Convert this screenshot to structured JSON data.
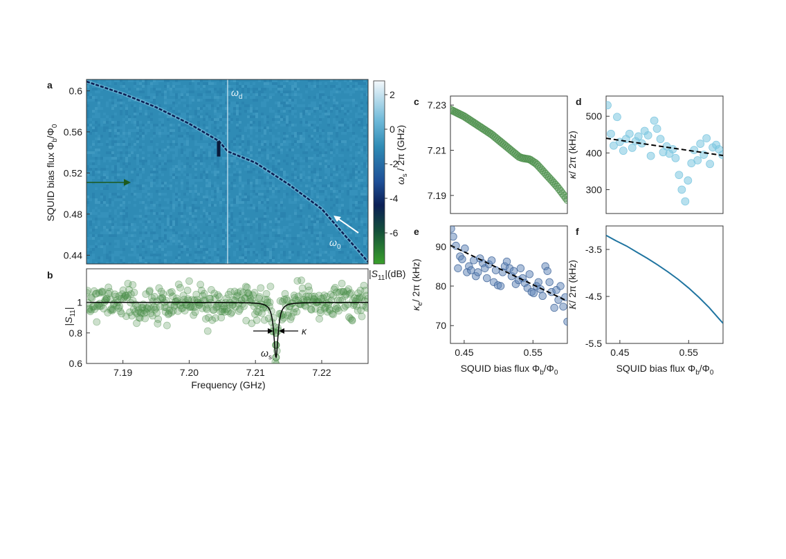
{
  "panel_labels": [
    "a",
    "b",
    "c",
    "d",
    "e",
    "f"
  ],
  "colors": {
    "heat_background": "#2f8bb5",
    "trace_dark": "#0b1f55",
    "green_points": "#4b8f4a",
    "light_blue_points": "#7cc6e0",
    "blue_points": "#5b81b5",
    "kerr_line": "#1f74a0",
    "fit_line": "#000000"
  },
  "chart_data": [
    {
      "id": "a",
      "type": "heatmap",
      "ylabel_prefix": "SQUID bias flux Φ",
      "ylabel_sub": "b",
      "ylabel_mid": "/Φ",
      "ylabel_sub2": "0",
      "xlim": [
        7.1845,
        7.227
      ],
      "ylim": [
        0.4315,
        0.611
      ],
      "yticks": [
        "0.6",
        "0.56",
        "0.52",
        "0.48",
        "0.44"
      ],
      "ytick_values": [
        0.6,
        0.56,
        0.52,
        0.48,
        0.44
      ],
      "colorbar": {
        "range": [
          -7.8,
          2.8
        ],
        "ticks": [
          "2",
          "0",
          "-2",
          "-4",
          "-6"
        ],
        "tick_values": [
          2,
          0,
          -2,
          -4,
          -6
        ],
        "label_open": "|",
        "label_s": "S",
        "label_sub": "11",
        "label_close": "|(dB)"
      },
      "drive_frequency": 7.2058,
      "annotations": {
        "drive_label": "ω",
        "drive_sub": "d",
        "res_label": "ω",
        "res_sub": "0"
      },
      "resonance_curve": {
        "x": [
          7.1845,
          7.19,
          7.195,
          7.2,
          7.2045,
          7.2058,
          7.21,
          7.215,
          7.22,
          7.227
        ],
        "y": [
          0.609,
          0.597,
          0.584,
          0.568,
          0.551,
          0.541,
          0.53,
          0.509,
          0.485,
          0.4335
        ]
      }
    },
    {
      "id": "b",
      "type": "scatter",
      "xlabel": "Frequency (GHz)",
      "ylabel_open": "|",
      "ylabel_s": "S",
      "ylabel_sub": "11",
      "ylabel_close": "|",
      "xlim": [
        7.1845,
        7.227
      ],
      "ylim": [
        0.6,
        1.22
      ],
      "xticks": [
        "7.19",
        "7.20",
        "7.21",
        "7.22"
      ],
      "xtick_values": [
        7.19,
        7.2,
        7.21,
        7.22
      ],
      "yticks": [
        "1",
        "0.8",
        "0.6"
      ],
      "ytick_values": [
        1.0,
        0.8,
        0.6
      ],
      "noise_points": 420,
      "noise_sigma": 0.055,
      "resonance": {
        "f0": 7.2131,
        "width": 0.00038,
        "depth": 0.36
      },
      "annotations": {
        "omega_label": "ω",
        "omega_sub": "s",
        "kappa_label": "κ"
      }
    },
    {
      "id": "c",
      "type": "scatter",
      "ylabel_main": "ω",
      "ylabel_sub": "s",
      "ylabel_rest": " / 2π (GHz)",
      "xlim": [
        0.43,
        0.6
      ],
      "ylim": [
        7.182,
        7.234
      ],
      "yticks": [
        "7.23",
        "7.21",
        "7.19"
      ],
      "ytick_values": [
        7.23,
        7.21,
        7.19
      ],
      "x": [
        0.43,
        0.45,
        0.47,
        0.49,
        0.51,
        0.53,
        0.535,
        0.545,
        0.555,
        0.57,
        0.585,
        0.6
      ],
      "y": [
        7.228,
        7.225,
        7.221,
        7.217,
        7.212,
        7.207,
        7.2065,
        7.206,
        7.204,
        7.199,
        7.194,
        7.188
      ]
    },
    {
      "id": "d",
      "type": "scatter",
      "ylabel_main": "κ",
      "ylabel_rest": "/ 2π (kHz)",
      "xlim": [
        0.43,
        0.6
      ],
      "ylim": [
        235,
        555
      ],
      "yticks": [
        "500",
        "400",
        "300"
      ],
      "ytick_values": [
        500,
        400,
        300
      ],
      "x": [
        0.432,
        0.437,
        0.441,
        0.446,
        0.45,
        0.455,
        0.459,
        0.464,
        0.468,
        0.473,
        0.477,
        0.482,
        0.486,
        0.491,
        0.495,
        0.5,
        0.504,
        0.509,
        0.513,
        0.518,
        0.522,
        0.527,
        0.531,
        0.536,
        0.54,
        0.545,
        0.549,
        0.554,
        0.558,
        0.563,
        0.567,
        0.572,
        0.576,
        0.581,
        0.585,
        0.59,
        0.594,
        0.599
      ],
      "y": [
        530,
        452,
        420,
        498,
        430,
        406,
        438,
        452,
        414,
        432,
        445,
        426,
        460,
        448,
        392,
        488,
        466,
        438,
        402,
        418,
        398,
        410,
        386,
        340,
        300,
        268,
        325,
        372,
        408,
        380,
        425,
        395,
        440,
        370,
        415,
        422,
        410,
        395
      ],
      "fit": {
        "x": [
          0.43,
          0.6
        ],
        "y": [
          440,
          393
        ]
      }
    },
    {
      "id": "e",
      "type": "scatter",
      "ylabel_main": "κ",
      "ylabel_sub": "e",
      "ylabel_rest": "/ 2π (kHz)",
      "xlabel_prefix": "SQUID bias flux Φ",
      "xlabel_sub": "b",
      "xlabel_mid": "/Φ",
      "xlabel_sub2": "0",
      "xlim": [
        0.43,
        0.6
      ],
      "ylim": [
        65.5,
        95.2
      ],
      "xticks": [
        "0.45",
        "0.55"
      ],
      "xtick_values": [
        0.45,
        0.55
      ],
      "yticks": [
        "90",
        "80",
        "70"
      ],
      "ytick_values": [
        90,
        80,
        70
      ],
      "x": [
        0.431,
        0.434,
        0.438,
        0.441,
        0.444,
        0.447,
        0.451,
        0.454,
        0.457,
        0.46,
        0.464,
        0.467,
        0.47,
        0.473,
        0.477,
        0.48,
        0.483,
        0.486,
        0.49,
        0.493,
        0.496,
        0.499,
        0.503,
        0.506,
        0.509,
        0.512,
        0.516,
        0.519,
        0.522,
        0.525,
        0.529,
        0.532,
        0.535,
        0.538,
        0.542,
        0.545,
        0.548,
        0.551,
        0.555,
        0.558,
        0.561,
        0.564,
        0.568,
        0.571,
        0.574,
        0.577,
        0.581,
        0.584,
        0.587,
        0.59,
        0.594,
        0.597,
        0.6
      ],
      "y": [
        94.5,
        92.5,
        90.2,
        84.5,
        87.5,
        86.8,
        89.5,
        83.5,
        85.0,
        84.0,
        86.5,
        82.5,
        83.5,
        87.0,
        85.8,
        84.5,
        82.0,
        85.5,
        86.5,
        81.0,
        84.0,
        80.2,
        80.0,
        83.5,
        85.0,
        86.2,
        84.5,
        82.5,
        83.8,
        80.5,
        81.5,
        84.5,
        82.0,
        80.8,
        79.5,
        83.0,
        78.5,
        78.2,
        80.0,
        81.0,
        79.2,
        77.5,
        85.0,
        83.8,
        81.0,
        78.5,
        74.5,
        79.0,
        76.5,
        80.0,
        74.8,
        77.2,
        71.0
      ],
      "fit": {
        "x": [
          0.43,
          0.6
        ],
        "y": [
          90.3,
          76.2
        ]
      }
    },
    {
      "id": "f",
      "type": "line",
      "ylabel_main": "K",
      "ylabel_rest": "/ 2π (kHz)",
      "xlabel_prefix": "SQUID bias flux Φ",
      "xlabel_sub": "b",
      "xlabel_mid": "/Φ",
      "xlabel_sub2": "0",
      "xlim": [
        0.43,
        0.6
      ],
      "ylim": [
        -5.5,
        -3.0
      ],
      "xticks": [
        "0.45",
        "0.55"
      ],
      "xtick_values": [
        0.45,
        0.55
      ],
      "yticks": [
        "-3.5",
        "-4.5",
        "-5.5"
      ],
      "ytick_values": [
        -3.5,
        -4.5,
        -5.5
      ],
      "x": [
        0.43,
        0.445,
        0.46,
        0.475,
        0.49,
        0.505,
        0.52,
        0.535,
        0.55,
        0.565,
        0.58,
        0.595,
        0.6
      ],
      "y": [
        -3.2,
        -3.32,
        -3.43,
        -3.56,
        -3.69,
        -3.83,
        -3.98,
        -4.14,
        -4.32,
        -4.52,
        -4.74,
        -4.99,
        -5.07
      ]
    }
  ]
}
